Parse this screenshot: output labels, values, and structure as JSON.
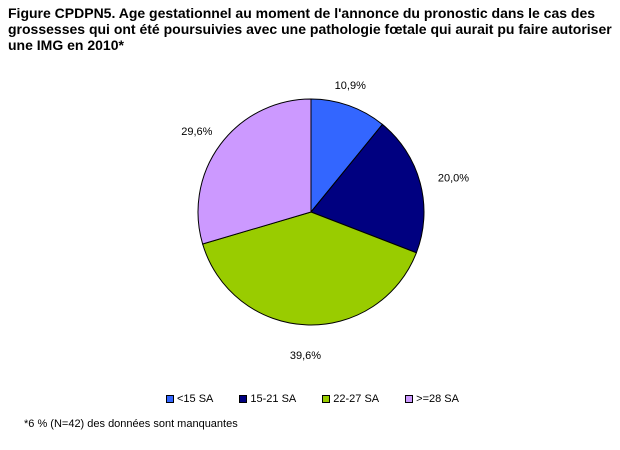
{
  "title": "Figure CPDPN5. Age gestationnel au moment de l'annonce du pronostic dans le cas des grossesses qui ont été poursuivies avec une pathologie fœtale qui aurait pu faire autoriser une IMG en 2010*",
  "footnote": "*6 % (N=42) des données sont manquantes",
  "chart_data": {
    "type": "pie",
    "title": "Figure CPDPN5. Age gestationnel au moment de l'annonce du pronostic dans le cas des grossesses qui ont été poursuivies avec une pathologie fœtale qui aurait pu faire autoriser une IMG en 2010*",
    "categories": [
      "<15 SA",
      "15-21 SA",
      "22-27 SA",
      ">=28 SA"
    ],
    "values": [
      10.9,
      20.0,
      39.6,
      29.6
    ],
    "labels": [
      "10,9%",
      "20,0%",
      "39,6%",
      "29,6%"
    ],
    "colors": [
      "#3366ff",
      "#000080",
      "#99cc00",
      "#cc99ff"
    ],
    "legend_position": "bottom"
  }
}
